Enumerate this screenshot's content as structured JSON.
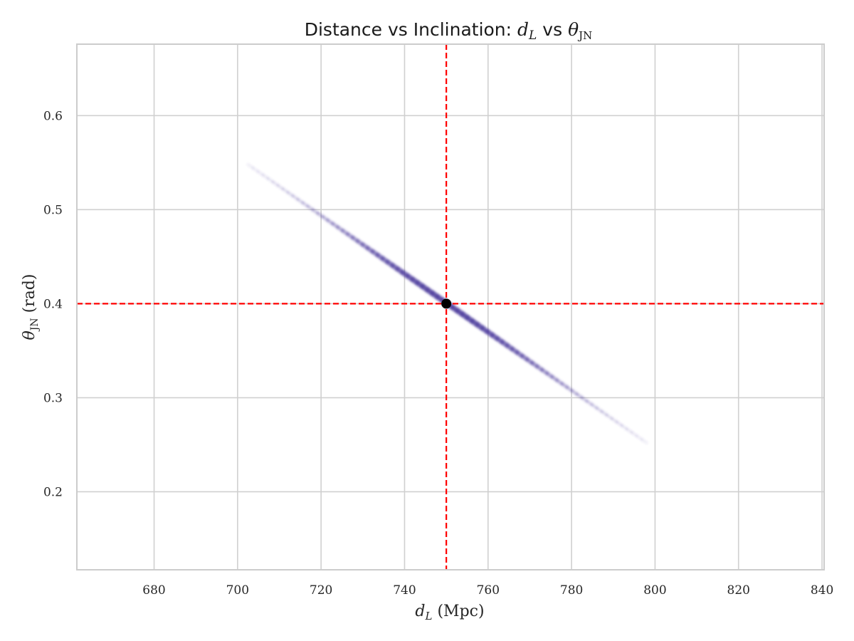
{
  "chart_data": {
    "type": "heatmap",
    "title": {
      "prefix": "Distance vs Inclination: ",
      "var1_main": "d",
      "var1_sub": "L",
      "joiner": " vs ",
      "var2_main": "θ",
      "var2_sub": "JN"
    },
    "xlabel": {
      "main": "d",
      "sub": "L",
      "unit": " (Mpc)"
    },
    "ylabel": {
      "main": "θ",
      "sub": "JN",
      "unit": " (rad)"
    },
    "xlim": [
      661.5,
      840.5
    ],
    "ylim": [
      0.117,
      0.676
    ],
    "x_ticks": [
      680,
      700,
      720,
      740,
      760,
      780,
      800,
      820,
      840
    ],
    "y_ticks": [
      0.2,
      0.3,
      0.4,
      0.5,
      0.6
    ],
    "x_tick_labels": [
      "680",
      "700",
      "720",
      "740",
      "760",
      "780",
      "800",
      "820",
      "840"
    ],
    "y_tick_labels": [
      "0.2",
      "0.3",
      "0.4",
      "0.5",
      "0.6"
    ],
    "grid": true,
    "density_band": {
      "start": [
        702.5,
        0.548
      ],
      "end": [
        798.0,
        0.252
      ],
      "peak": [
        750.0,
        0.4
      ],
      "color": "#4b3a9c"
    },
    "injected_value": {
      "x": 750,
      "y": 0.4,
      "color": "#000000"
    },
    "reference_lines": {
      "x": 750,
      "y": 0.4,
      "color": "#ff0000",
      "style": "dashed"
    }
  }
}
